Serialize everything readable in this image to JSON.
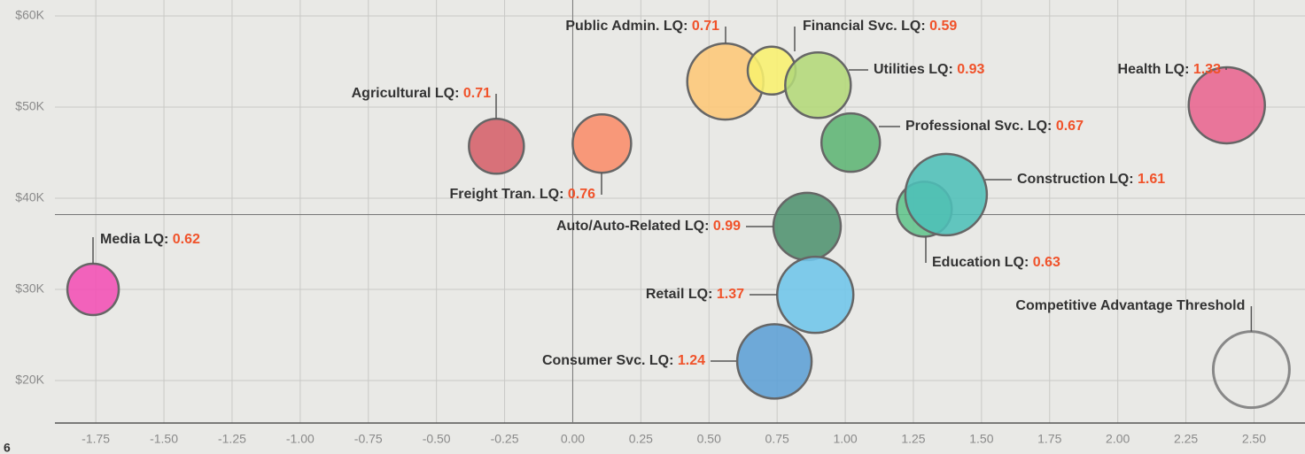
{
  "chart_data": {
    "type": "bubble",
    "xlim": [
      -1.9,
      2.687
    ],
    "ylim": [
      15340,
      60000
    ],
    "xticks": [
      -1.75,
      {
        "value": -1.5,
        "label": "-1.50"
      },
      -1.25,
      {
        "value": -1,
        "label": "-1.00"
      },
      -0.75,
      {
        "value": -0.5,
        "label": "-0.50"
      },
      -0.25,
      {
        "value": 0,
        "label": "0.00"
      },
      0.25,
      {
        "value": 0.5,
        "label": "0.50"
      },
      0.75,
      {
        "value": 1,
        "label": "1.00"
      },
      1.25,
      {
        "value": 1.5,
        "label": "1.50"
      },
      1.75,
      {
        "value": 2,
        "label": "2.00"
      },
      2.25,
      {
        "value": 2.5,
        "label": "2.50"
      }
    ],
    "yticks": [
      {
        "value": 20000,
        "label": "$20K"
      },
      {
        "value": 30000,
        "label": "$30K"
      },
      {
        "value": 40000,
        "label": "$40K"
      },
      {
        "value": 50000,
        "label": "$50K"
      },
      {
        "value": 60000,
        "label": "$60K"
      }
    ],
    "grid": true,
    "reference_x": 0,
    "reference_y": 38200,
    "series": [
      {
        "name": "Media LQ: ",
        "lq": 0.62,
        "color": "#f24fb5",
        "x": -1.76,
        "y": 30000,
        "size": 29
      },
      {
        "name": "Agricultural LQ: ",
        "lq": 0.71,
        "color": "#d5606a",
        "x": -0.28,
        "y": 45700,
        "size": 31
      },
      {
        "name": "Freight Tran. LQ: ",
        "lq": 0.76,
        "color": "#f98c6a",
        "x": 0.107,
        "y": 46000,
        "size": 33
      },
      {
        "name": "Public Admin. LQ: ",
        "lq": 0.71,
        "color": "#fdc777",
        "x": 0.56,
        "y": 52800,
        "size": 43
      },
      {
        "name": "Financial Svc. LQ: ",
        "lq": 0.59,
        "color": "#f8f06e",
        "x": 0.73,
        "y": 54000,
        "size": 27
      },
      {
        "name": "Utilities LQ: ",
        "lq": 0.93,
        "color": "#b3d879",
        "x": 0.9,
        "y": 52400,
        "size": 37
      },
      {
        "name": "Professional Svc. LQ: ",
        "lq": 0.67,
        "color": "#5db474",
        "x": 1.02,
        "y": 46100,
        "size": 33
      },
      {
        "name": "Health LQ: ",
        "lq": 1.33,
        "color": "#e8648f",
        "x": 2.4,
        "y": 50200,
        "size": 43
      },
      {
        "name": "Education LQ: ",
        "lq": 0.63,
        "color": "#61c48c",
        "x": 1.29,
        "y": 38800,
        "size": 31
      },
      {
        "name": "Construction LQ: ",
        "lq": 1.61,
        "color": "#4dbfb8",
        "x": 1.37,
        "y": 40400,
        "size": 46
      },
      {
        "name": "Auto/Auto-Related LQ: ",
        "lq": 0.99,
        "color": "#4f9270",
        "x": 0.86,
        "y": 36900,
        "size": 38
      },
      {
        "name": "Retail LQ: ",
        "lq": 1.37,
        "color": "#6ec5ea",
        "x": 0.89,
        "y": 29400,
        "size": 43
      },
      {
        "name": "Consumer Svc. LQ: ",
        "lq": 1.24,
        "color": "#5c9fd6",
        "x": 0.74,
        "y": 22100,
        "size": 42
      }
    ],
    "threshold": {
      "name": "Competitive Advantage Threshold",
      "x": 2.49,
      "y": 21200,
      "size": 43
    }
  },
  "page_number": "6"
}
